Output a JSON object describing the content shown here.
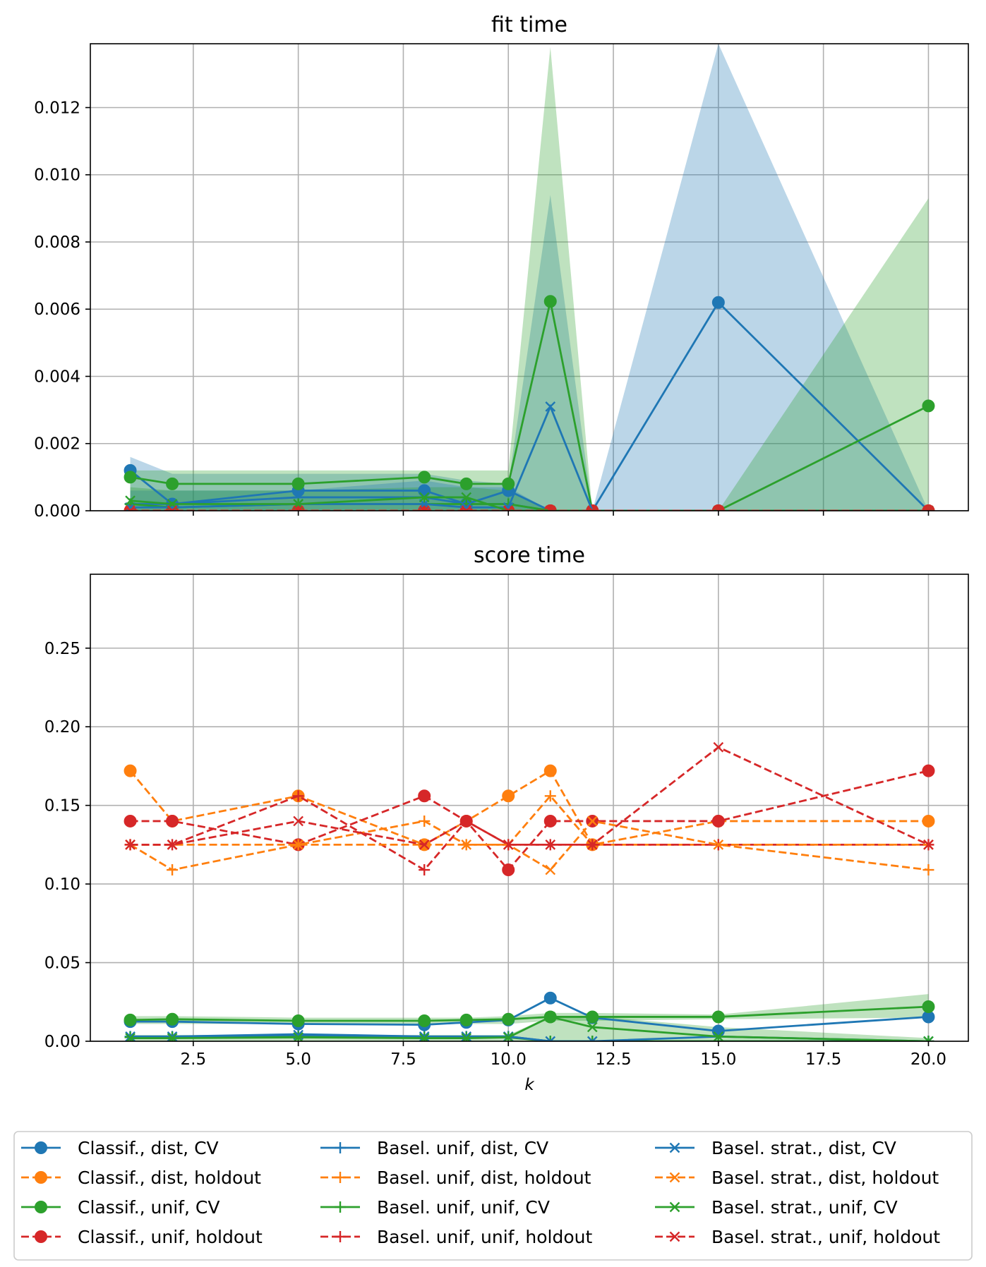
{
  "colors": {
    "blue": "#1f77b4",
    "orange": "#ff7f0e",
    "green": "#2ca02c",
    "red": "#d62728"
  },
  "legend": {
    "placement": "bottom, 3 columns",
    "entries": [
      {
        "label": "Classif., dist, CV",
        "color": "#1f77b4",
        "dash": "solid",
        "marker": "o"
      },
      {
        "label": "Classif., dist, holdout",
        "color": "#ff7f0e",
        "dash": "dashed",
        "marker": "o"
      },
      {
        "label": "Classif., unif, CV",
        "color": "#2ca02c",
        "dash": "solid",
        "marker": "o"
      },
      {
        "label": "Classif., unif, holdout",
        "color": "#d62728",
        "dash": "dashed",
        "marker": "o"
      },
      {
        "label": "Basel. unif, dist, CV",
        "color": "#1f77b4",
        "dash": "solid",
        "marker": "+"
      },
      {
        "label": "Basel. unif, dist, holdout",
        "color": "#ff7f0e",
        "dash": "dashed",
        "marker": "+"
      },
      {
        "label": "Basel. unif, unif, CV",
        "color": "#2ca02c",
        "dash": "solid",
        "marker": "+"
      },
      {
        "label": "Basel. unif, unif, holdout",
        "color": "#d62728",
        "dash": "dashed",
        "marker": "+"
      },
      {
        "label": "Basel. strat., dist, CV",
        "color": "#1f77b4",
        "dash": "solid",
        "marker": "x"
      },
      {
        "label": "Basel. strat., dist, holdout",
        "color": "#ff7f0e",
        "dash": "dashed",
        "marker": "x"
      },
      {
        "label": "Basel. strat., unif, CV",
        "color": "#2ca02c",
        "dash": "solid",
        "marker": "x"
      },
      {
        "label": "Basel. strat., unif, holdout",
        "color": "#d62728",
        "dash": "dashed",
        "marker": "x"
      }
    ]
  },
  "chart_data": [
    {
      "type": "line",
      "title": "fit time",
      "xlabel": "",
      "ylabel": "",
      "grid": true,
      "xlim": [
        0.05,
        20.95
      ],
      "ylim": [
        0,
        0.0139
      ],
      "xticks": [
        2.5,
        5.0,
        7.5,
        10.0,
        12.5,
        15.0,
        17.5,
        20.0
      ],
      "xtick_labels_visible": false,
      "yticks": [
        0.0,
        0.002,
        0.004,
        0.006,
        0.008,
        0.01,
        0.012
      ],
      "ytick_labels": [
        "0.000",
        "0.002",
        "0.004",
        "0.006",
        "0.008",
        "0.010",
        "0.012"
      ],
      "x": [
        1,
        2,
        5,
        8,
        9,
        10,
        11,
        12,
        15,
        20
      ],
      "bands": [
        {
          "color": "#1f77b4",
          "upper": [
            0.0016,
            0.0011,
            0.0011,
            0.0011,
            0.0009,
            0.0008,
            0.0094,
            0.0,
            0.0139,
            0.0
          ],
          "lower": [
            0.0,
            0.0,
            0.0,
            0.0,
            0.0,
            0.0,
            0.0,
            0.0,
            0.0,
            0.0
          ]
        },
        {
          "color": "#2ca02c",
          "upper": [
            0.0012,
            0.0012,
            0.0012,
            0.0012,
            0.0012,
            0.0012,
            0.0138,
            0.0,
            0.0,
            0.0093
          ],
          "lower": [
            0.0,
            0.0,
            0.0,
            0.0,
            0.0,
            0.0,
            0.0,
            0.0,
            0.0,
            0.0
          ]
        },
        {
          "color": "#1f77b4",
          "upper": [
            0.0006,
            0.0006,
            0.0006,
            0.0009,
            0.0007,
            0.0007,
            0.0,
            0.0,
            0.0,
            0.0
          ],
          "lower": [
            0.0,
            0.0,
            0.0,
            0.0,
            0.0,
            0.0,
            0.0,
            0.0,
            0.0,
            0.0
          ]
        },
        {
          "color": "#2ca02c",
          "upper": [
            0.0007,
            0.0006,
            0.0006,
            0.0007,
            0.0007,
            0.0006,
            0.0,
            0.0,
            0.0,
            0.0
          ],
          "lower": [
            0.0,
            0.0,
            0.0,
            0.0,
            0.0,
            0.0,
            0.0,
            0.0,
            0.0,
            0.0
          ]
        }
      ],
      "series": [
        {
          "name": "Classif., dist, CV",
          "color": "#1f77b4",
          "dash": "solid",
          "marker": "o",
          "values": [
            0.0012,
            0.0002,
            0.0006,
            0.0006,
            0.0002,
            0.0006,
            0.0,
            0.0,
            0.0062,
            0.0
          ]
        },
        {
          "name": "Classif., dist, holdout",
          "color": "#ff7f0e",
          "dash": "dashed",
          "marker": "o",
          "values": [
            0.0,
            0.0,
            0.0,
            0.0,
            0.0,
            0.0,
            0.0,
            0.0,
            0.0,
            0.0
          ]
        },
        {
          "name": "Classif., unif, CV",
          "color": "#2ca02c",
          "dash": "solid",
          "marker": "o",
          "values": [
            0.001,
            0.0008,
            0.0008,
            0.001,
            0.0008,
            0.0008,
            0.00623,
            0.0,
            0.0,
            0.00312
          ]
        },
        {
          "name": "Classif., unif, holdout",
          "color": "#d62728",
          "dash": "dashed",
          "marker": "o",
          "values": [
            0.0,
            0.0,
            0.0,
            0.0,
            0.0,
            0.0,
            0.0,
            0.0,
            0.0,
            0.0
          ]
        },
        {
          "name": "Basel. unif, dist, CV",
          "color": "#1f77b4",
          "dash": "solid",
          "marker": "+",
          "values": [
            0.0002,
            0.0002,
            0.0004,
            0.0004,
            0.0002,
            0.0002,
            0.0,
            0.0,
            0.0,
            0.0
          ]
        },
        {
          "name": "Basel. unif, dist, holdout",
          "color": "#ff7f0e",
          "dash": "dashed",
          "marker": "+",
          "values": [
            0.0,
            0.0,
            0.0,
            0.0,
            0.0,
            0.0,
            0.0,
            0.0,
            0.0,
            0.0
          ]
        },
        {
          "name": "Basel. unif, unif, CV",
          "color": "#2ca02c",
          "dash": "solid",
          "marker": "+",
          "values": [
            0.0002,
            0.0001,
            0.0002,
            0.0002,
            0.0002,
            0.0002,
            0.0,
            0.0,
            0.0,
            0.0
          ]
        },
        {
          "name": "Basel. unif, unif, holdout",
          "color": "#d62728",
          "dash": "dashed",
          "marker": "+",
          "values": [
            0.0,
            0.0,
            0.0,
            0.0,
            0.0,
            0.0,
            0.0,
            0.0,
            0.0,
            0.0
          ]
        },
        {
          "name": "Basel. strat., dist, CV",
          "color": "#1f77b4",
          "dash": "solid",
          "marker": "x",
          "values": [
            0.0001,
            0.0001,
            0.0002,
            0.0002,
            0.0001,
            0.0001,
            0.0031,
            0.0,
            0.0,
            0.0
          ]
        },
        {
          "name": "Basel. strat., dist, holdout",
          "color": "#ff7f0e",
          "dash": "dashed",
          "marker": "x",
          "values": [
            0.0,
            0.0,
            0.0,
            0.0,
            0.0,
            0.0,
            0.0,
            0.0,
            0.0,
            0.0
          ]
        },
        {
          "name": "Basel. strat., unif, CV",
          "color": "#2ca02c",
          "dash": "solid",
          "marker": "x",
          "values": [
            0.0003,
            0.0002,
            0.0002,
            0.0004,
            0.0004,
            0.0,
            0.0,
            0.0,
            0.0,
            0.0
          ]
        },
        {
          "name": "Basel. strat., unif, holdout",
          "color": "#d62728",
          "dash": "dashed",
          "marker": "x",
          "values": [
            0.0,
            0.0,
            0.0,
            0.0,
            0.0,
            0.0,
            0.0,
            0.0,
            0.0,
            0.0
          ]
        }
      ]
    },
    {
      "type": "line",
      "title": "score time",
      "xlabel": "k",
      "ylabel": "",
      "grid": true,
      "xlim": [
        0.05,
        20.95
      ],
      "ylim": [
        0,
        0.297
      ],
      "xticks": [
        2.5,
        5.0,
        7.5,
        10.0,
        12.5,
        15.0,
        17.5,
        20.0
      ],
      "xtick_labels": [
        "2.5",
        "5.0",
        "7.5",
        "10.0",
        "12.5",
        "15.0",
        "17.5",
        "20.0"
      ],
      "yticks": [
        0.0,
        0.05,
        0.1,
        0.15,
        0.2,
        0.25
      ],
      "ytick_labels": [
        "0.00",
        "0.05",
        "0.10",
        "0.15",
        "0.20",
        "0.25"
      ],
      "x": [
        1,
        2,
        5,
        8,
        9,
        10,
        11,
        12,
        15,
        20
      ],
      "bands": [
        {
          "color": "#2ca02c",
          "upper": [
            0.016,
            0.016,
            0.015,
            0.015,
            0.015,
            0.016,
            0.018,
            0.018,
            0.017,
            0.03
          ],
          "lower": [
            0.011,
            0.011,
            0.011,
            0.011,
            0.011,
            0.011,
            0.013,
            0.013,
            0.014,
            0.015
          ]
        },
        {
          "color": "#2ca02c",
          "upper": [
            0.004,
            0.004,
            0.004,
            0.004,
            0.004,
            0.004,
            0.016,
            0.016,
            0.009,
            0.002
          ],
          "lower": [
            0.0,
            0.0,
            0.0,
            0.0,
            0.0,
            0.0,
            0.0,
            0.0,
            0.0,
            0.0
          ]
        }
      ],
      "series": [
        {
          "name": "Classif., dist, CV",
          "color": "#1f77b4",
          "dash": "solid",
          "marker": "o",
          "values": [
            0.0125,
            0.0125,
            0.011,
            0.0105,
            0.012,
            0.0135,
            0.0275,
            0.015,
            0.0065,
            0.0155
          ]
        },
        {
          "name": "Classif., dist, holdout",
          "color": "#ff7f0e",
          "dash": "dashed",
          "marker": "o",
          "values": [
            0.172,
            0.14,
            0.156,
            0.125,
            0.14,
            0.156,
            0.172,
            0.125,
            0.14,
            0.14
          ]
        },
        {
          "name": "Classif., unif, CV",
          "color": "#2ca02c",
          "dash": "solid",
          "marker": "o",
          "values": [
            0.0135,
            0.014,
            0.013,
            0.013,
            0.0135,
            0.014,
            0.0155,
            0.0155,
            0.0155,
            0.022
          ]
        },
        {
          "name": "Classif., unif, holdout",
          "color": "#d62728",
          "dash": "dashed",
          "marker": "o",
          "values": [
            0.14,
            0.14,
            0.125,
            0.156,
            0.14,
            0.109,
            0.14,
            0.14,
            0.14,
            0.172
          ]
        },
        {
          "name": "Basel. unif, dist, CV",
          "color": "#1f77b4",
          "dash": "solid",
          "marker": "+",
          "values": [
            0.003,
            0.003,
            0.0045,
            0.003,
            0.003,
            0.003,
            0.0,
            0.0,
            0.0,
            0.0
          ]
        },
        {
          "name": "Basel. unif, dist, holdout",
          "color": "#ff7f0e",
          "dash": "dashed",
          "marker": "+",
          "values": [
            0.125,
            0.109,
            0.125,
            0.14,
            0.125,
            0.125,
            0.156,
            0.125,
            0.125,
            0.109
          ]
        },
        {
          "name": "Basel. unif, unif, CV",
          "color": "#2ca02c",
          "dash": "solid",
          "marker": "+",
          "values": [
            0.0025,
            0.0025,
            0.003,
            0.0025,
            0.0025,
            0.0025,
            0.0,
            0.0,
            0.0,
            0.0
          ]
        },
        {
          "name": "Basel. unif, unif, holdout",
          "color": "#d62728",
          "dash": "dashed",
          "marker": "+",
          "values": [
            0.125,
            0.125,
            0.156,
            0.109,
            0.14,
            0.125,
            0.125,
            0.125,
            0.125,
            0.125
          ]
        },
        {
          "name": "Basel. strat., dist, CV",
          "color": "#1f77b4",
          "dash": "solid",
          "marker": "x",
          "values": [
            0.003,
            0.003,
            0.004,
            0.003,
            0.003,
            0.003,
            0.0,
            0.0,
            0.003,
            0.0
          ]
        },
        {
          "name": "Basel. strat., dist, holdout",
          "color": "#ff7f0e",
          "dash": "dashed",
          "marker": "x",
          "values": [
            0.125,
            0.125,
            0.125,
            0.125,
            0.125,
            0.125,
            0.109,
            0.14,
            0.125,
            0.125
          ]
        },
        {
          "name": "Basel. strat., unif, CV",
          "color": "#2ca02c",
          "dash": "solid",
          "marker": "x",
          "values": [
            0.002,
            0.002,
            0.0025,
            0.002,
            0.002,
            0.0025,
            0.0155,
            0.009,
            0.003,
            0.0
          ]
        },
        {
          "name": "Basel. strat., unif, holdout",
          "color": "#d62728",
          "dash": "dashed",
          "marker": "x",
          "values": [
            0.125,
            0.125,
            0.14,
            0.125,
            0.14,
            0.125,
            0.125,
            0.125,
            0.187,
            0.125
          ]
        }
      ]
    }
  ]
}
